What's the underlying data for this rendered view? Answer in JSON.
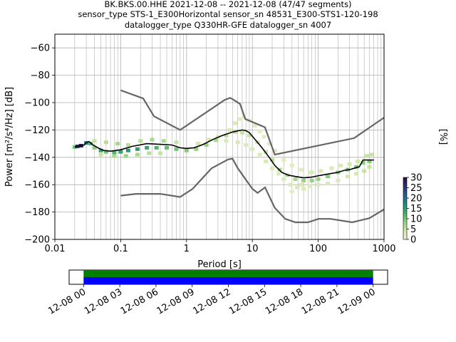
{
  "title_lines": [
    "BK.BKS.00.HHE   2021-12-08 -- 2021-12-08  (47/47 segments)",
    "sensor_type STS-1_E300Horizontal sensor_sn 48531_E300-STS1-120-198",
    "datalogger_type Q330HR-GFE datalogger_sn 4007"
  ],
  "colorbar": {
    "label": "[%]",
    "ticks": [
      "0",
      "5",
      "10",
      "15",
      "20",
      "25",
      "30"
    ],
    "tick_values": [
      0,
      5,
      10,
      15,
      20,
      25,
      30
    ],
    "range": [
      0,
      30
    ],
    "colors": [
      "#f2f0d9",
      "#cfe8a6",
      "#8fd17a",
      "#3fae6a",
      "#1f8a82",
      "#2a5d8f",
      "#2e2f6e",
      "#2b0f3a"
    ]
  },
  "chart_data": [
    {
      "type": "heatmap",
      "xlabel": "Period [s]",
      "ylabel": "Power [m²/s⁴/Hz] [dB]",
      "xscale": "log",
      "xlim": [
        0.01,
        1000
      ],
      "ylim": [
        -200,
        -50
      ],
      "xticks": [
        "0.01",
        "0.1",
        "1",
        "10",
        "100",
        "1000"
      ],
      "xtick_values": [
        0.01,
        0.1,
        1,
        10,
        100,
        1000
      ],
      "yticks": [
        "−200",
        "−180",
        "−160",
        "−140",
        "−120",
        "−100",
        "−80",
        "−60"
      ],
      "ytick_values": [
        -200,
        -180,
        -160,
        -140,
        -120,
        -100,
        -80,
        -60
      ],
      "grid": true,
      "noise_model_color": "#666666",
      "mode_color": "#000000",
      "high_noise_model": [
        [
          0.1,
          -91
        ],
        [
          0.22,
          -97
        ],
        [
          0.32,
          -110
        ],
        [
          0.8,
          -120
        ],
        [
          3.8,
          -98
        ],
        [
          4.6,
          -96.5
        ],
        [
          5.2,
          -98
        ],
        [
          6.5,
          -101
        ],
        [
          7.8,
          -112
        ],
        [
          11,
          -115
        ],
        [
          15.5,
          -118
        ],
        [
          21.9,
          -138
        ],
        [
          350,
          -126
        ],
        [
          1000,
          -111
        ]
      ],
      "low_noise_model": [
        [
          0.1,
          -168
        ],
        [
          0.17,
          -166.7
        ],
        [
          0.4,
          -166.7
        ],
        [
          0.8,
          -169
        ],
        [
          1.24,
          -163
        ],
        [
          2.4,
          -148
        ],
        [
          4.3,
          -141.5
        ],
        [
          5,
          -141
        ],
        [
          6,
          -148
        ],
        [
          10,
          -163
        ],
        [
          12,
          -166
        ],
        [
          15.6,
          -162
        ],
        [
          21.9,
          -177
        ],
        [
          31.6,
          -185
        ],
        [
          45,
          -187.5
        ],
        [
          70,
          -187.5
        ],
        [
          101,
          -185
        ],
        [
          154,
          -185
        ],
        [
          328,
          -187.5
        ],
        [
          600,
          -184.5
        ],
        [
          1000,
          -178
        ]
      ],
      "mode_curve": [
        [
          0.02,
          -132.5
        ],
        [
          0.024,
          -131.5
        ],
        [
          0.028,
          -131
        ],
        [
          0.03,
          -129
        ],
        [
          0.033,
          -128.5
        ],
        [
          0.038,
          -131
        ],
        [
          0.045,
          -133
        ],
        [
          0.055,
          -135
        ],
        [
          0.07,
          -135.5
        ],
        [
          0.1,
          -134.5
        ],
        [
          0.15,
          -132
        ],
        [
          0.25,
          -130
        ],
        [
          0.4,
          -130.5
        ],
        [
          0.6,
          -131
        ],
        [
          0.8,
          -133
        ],
        [
          1,
          -133.5
        ],
        [
          1.3,
          -133
        ],
        [
          1.8,
          -130.5
        ],
        [
          2.5,
          -127
        ],
        [
          3.5,
          -124
        ],
        [
          5,
          -121.5
        ],
        [
          7,
          -120
        ],
        [
          8,
          -120.5
        ],
        [
          9,
          -122
        ],
        [
          11,
          -127
        ],
        [
          14,
          -133
        ],
        [
          18,
          -140
        ],
        [
          22,
          -146
        ],
        [
          28,
          -151
        ],
        [
          35,
          -153
        ],
        [
          45,
          -154
        ],
        [
          60,
          -155
        ],
        [
          80,
          -154.5
        ],
        [
          100,
          -153.5
        ],
        [
          150,
          -152
        ],
        [
          200,
          -151
        ],
        [
          250,
          -149.5
        ],
        [
          300,
          -149
        ],
        [
          350,
          -148
        ],
        [
          420,
          -147
        ],
        [
          480,
          -142
        ],
        [
          550,
          -142
        ],
        [
          700,
          -142
        ]
      ],
      "density_points": [
        [
          0.02,
          -132.5,
          10
        ],
        [
          0.022,
          -132,
          25
        ],
        [
          0.025,
          -131.5,
          28
        ],
        [
          0.03,
          -129.5,
          18
        ],
        [
          0.035,
          -130,
          12
        ],
        [
          0.04,
          -133,
          9
        ],
        [
          0.05,
          -135,
          14
        ],
        [
          0.06,
          -136,
          10
        ],
        [
          0.08,
          -136.5,
          12
        ],
        [
          0.1,
          -136,
          14
        ],
        [
          0.13,
          -135,
          16
        ],
        [
          0.18,
          -134,
          15
        ],
        [
          0.25,
          -133,
          14
        ],
        [
          0.35,
          -133,
          12
        ],
        [
          0.5,
          -133,
          11
        ],
        [
          0.7,
          -134,
          10
        ],
        [
          1,
          -135,
          9
        ],
        [
          1.4,
          -134,
          8
        ],
        [
          2,
          -131,
          8
        ],
        [
          2.8,
          -127.5,
          7
        ],
        [
          4,
          -124,
          6
        ],
        [
          5.5,
          -121.5,
          5
        ],
        [
          7,
          -122,
          5
        ],
        [
          9,
          -124,
          5
        ],
        [
          12,
          -129,
          5
        ],
        [
          16,
          -136,
          5
        ],
        [
          20,
          -142,
          6
        ],
        [
          26,
          -149,
          7
        ],
        [
          34,
          -153,
          7
        ],
        [
          45,
          -156,
          7
        ],
        [
          60,
          -157,
          8
        ],
        [
          80,
          -157,
          8
        ],
        [
          100,
          -156,
          8
        ],
        [
          140,
          -154,
          9
        ],
        [
          200,
          -151,
          9
        ],
        [
          280,
          -149,
          10
        ],
        [
          380,
          -147,
          10
        ],
        [
          480,
          -144,
          9
        ],
        [
          600,
          -143,
          9
        ],
        [
          0.04,
          -128,
          5
        ],
        [
          0.06,
          -129,
          6
        ],
        [
          0.09,
          -130,
          7
        ],
        [
          0.13,
          -131,
          6
        ],
        [
          0.2,
          -128,
          6
        ],
        [
          0.3,
          -127,
          7
        ],
        [
          0.45,
          -128,
          7
        ],
        [
          0.7,
          -129,
          5
        ],
        [
          0.05,
          -138,
          5
        ],
        [
          0.08,
          -139,
          7
        ],
        [
          0.12,
          -139,
          8
        ],
        [
          0.18,
          -138,
          7
        ],
        [
          0.27,
          -137,
          6
        ],
        [
          0.4,
          -137,
          5
        ],
        [
          1.5,
          -130,
          4
        ],
        [
          2.2,
          -127,
          4
        ],
        [
          3,
          -125,
          4
        ],
        [
          4.5,
          -120,
          3
        ],
        [
          5.5,
          -115,
          3
        ],
        [
          6.5,
          -112,
          2
        ],
        [
          7.5,
          -110,
          2
        ],
        [
          9,
          -113,
          2
        ],
        [
          11,
          -117,
          2
        ],
        [
          13,
          -121,
          2
        ],
        [
          15,
          -125,
          2
        ],
        [
          18,
          -130,
          2
        ],
        [
          22,
          -135,
          2
        ],
        [
          4,
          -128,
          3
        ],
        [
          6,
          -129,
          3
        ],
        [
          8,
          -131,
          3
        ],
        [
          10,
          -134,
          3
        ],
        [
          13,
          -138,
          3
        ],
        [
          16,
          -143,
          3
        ],
        [
          20,
          -148,
          3
        ],
        [
          25,
          -152,
          3
        ],
        [
          30,
          -156,
          3
        ],
        [
          38,
          -160,
          3
        ],
        [
          48,
          -162,
          3
        ],
        [
          60,
          -163,
          3
        ],
        [
          30,
          -142,
          2
        ],
        [
          40,
          -146,
          2
        ],
        [
          55,
          -149,
          2
        ],
        [
          75,
          -151,
          2
        ],
        [
          40,
          -165,
          2
        ],
        [
          55,
          -160,
          3
        ],
        [
          75,
          -161,
          3
        ],
        [
          100,
          -160,
          3
        ],
        [
          140,
          -159,
          3
        ],
        [
          200,
          -157,
          3
        ],
        [
          280,
          -154,
          4
        ],
        [
          380,
          -152,
          4
        ],
        [
          500,
          -150,
          5
        ],
        [
          600,
          -147,
          5
        ],
        [
          80,
          -151,
          3
        ],
        [
          110,
          -150,
          3
        ],
        [
          160,
          -148,
          3
        ],
        [
          220,
          -146,
          3
        ],
        [
          300,
          -145,
          4
        ],
        [
          400,
          -143,
          4
        ],
        [
          550,
          -139,
          5
        ],
        [
          650,
          -138,
          5
        ]
      ]
    },
    {
      "type": "timeline",
      "xticks": [
        "12-08 00",
        "12-08 03",
        "12-08 06",
        "12-08 09",
        "12-08 12",
        "12-08 15",
        "12-08 18",
        "12-08 21",
        "12-09 00"
      ],
      "tick_hours": [
        0,
        3,
        6,
        9,
        12,
        15,
        18,
        21,
        24
      ],
      "xlim_hours": [
        -1.2,
        25.2
      ],
      "coverage_hours": [
        0,
        24
      ],
      "coverage_colors": [
        "#008000",
        "#0000ff"
      ]
    }
  ]
}
